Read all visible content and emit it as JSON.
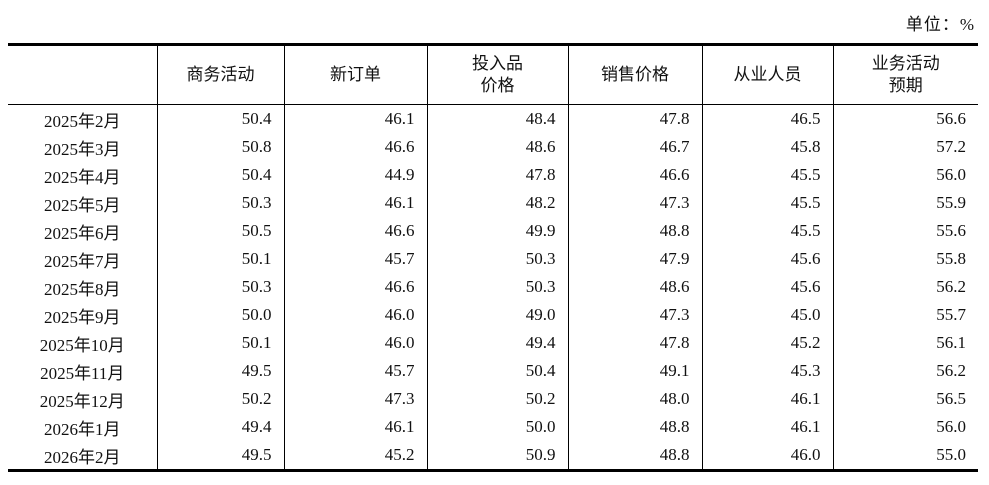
{
  "unit_label": "单位：%",
  "chart_data": {
    "type": "table",
    "unit_label": "单位：%",
    "columns": [
      "",
      "商务活动",
      "新订单",
      "投入品价格",
      "销售价格",
      "从业人员",
      "业务活动预期"
    ],
    "columns_display": [
      "",
      "商务活动",
      "新订单",
      "投入品\n价格",
      "销售价格",
      "从业人员",
      "业务活动\n预期"
    ],
    "rows": [
      {
        "label": "2025年2月",
        "values": [
          50.4,
          46.1,
          48.4,
          47.8,
          46.5,
          56.6
        ]
      },
      {
        "label": "2025年3月",
        "values": [
          50.8,
          46.6,
          48.6,
          46.7,
          45.8,
          57.2
        ]
      },
      {
        "label": "2025年4月",
        "values": [
          50.4,
          44.9,
          47.8,
          46.6,
          45.5,
          56.0
        ]
      },
      {
        "label": "2025年5月",
        "values": [
          50.3,
          46.1,
          48.2,
          47.3,
          45.5,
          55.9
        ]
      },
      {
        "label": "2025年6月",
        "values": [
          50.5,
          46.6,
          49.9,
          48.8,
          45.5,
          55.6
        ]
      },
      {
        "label": "2025年7月",
        "values": [
          50.1,
          45.7,
          50.3,
          47.9,
          45.6,
          55.8
        ]
      },
      {
        "label": "2025年8月",
        "values": [
          50.3,
          46.6,
          50.3,
          48.6,
          45.6,
          56.2
        ]
      },
      {
        "label": "2025年9月",
        "values": [
          50.0,
          46.0,
          49.0,
          47.3,
          45.0,
          55.7
        ]
      },
      {
        "label": "2025年10月",
        "values": [
          50.1,
          46.0,
          49.4,
          47.8,
          45.2,
          56.1
        ]
      },
      {
        "label": "2025年11月",
        "values": [
          49.5,
          45.7,
          50.4,
          49.1,
          45.3,
          56.2
        ]
      },
      {
        "label": "2025年12月",
        "values": [
          50.2,
          47.3,
          50.2,
          48.0,
          46.1,
          56.5
        ]
      },
      {
        "label": "2026年1月",
        "values": [
          49.4,
          46.1,
          50.0,
          48.8,
          46.1,
          56.0
        ]
      },
      {
        "label": "2026年2月",
        "values": [
          49.5,
          45.2,
          50.9,
          48.8,
          46.0,
          55.0
        ]
      }
    ]
  }
}
